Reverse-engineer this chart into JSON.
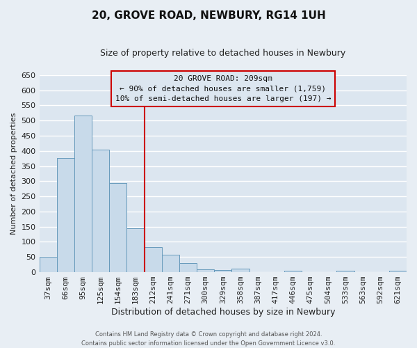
{
  "title": "20, GROVE ROAD, NEWBURY, RG14 1UH",
  "subtitle": "Size of property relative to detached houses in Newbury",
  "xlabel": "Distribution of detached houses by size in Newbury",
  "ylabel": "Number of detached properties",
  "categories": [
    "37sqm",
    "66sqm",
    "95sqm",
    "125sqm",
    "154sqm",
    "183sqm",
    "212sqm",
    "241sqm",
    "271sqm",
    "300sqm",
    "329sqm",
    "358sqm",
    "387sqm",
    "417sqm",
    "446sqm",
    "475sqm",
    "504sqm",
    "533sqm",
    "563sqm",
    "592sqm",
    "621sqm"
  ],
  "values": [
    51,
    376,
    517,
    403,
    293,
    144,
    82,
    57,
    30,
    10,
    7,
    11,
    0,
    0,
    5,
    0,
    0,
    5,
    0,
    0,
    5
  ],
  "bar_color": "#c8daea",
  "bar_edge_color": "#6699bb",
  "vline_x_index": 6,
  "vline_color": "#cc0000",
  "annotation_title": "20 GROVE ROAD: 209sqm",
  "annotation_line1": "← 90% of detached houses are smaller (1,759)",
  "annotation_line2": "10% of semi-detached houses are larger (197) →",
  "annotation_box_edge_color": "#cc0000",
  "ylim": [
    0,
    650
  ],
  "yticks": [
    0,
    50,
    100,
    150,
    200,
    250,
    300,
    350,
    400,
    450,
    500,
    550,
    600,
    650
  ],
  "footer_line1": "Contains HM Land Registry data © Crown copyright and database right 2024.",
  "footer_line2": "Contains public sector information licensed under the Open Government Licence v3.0.",
  "fig_bg_color": "#e8eef4",
  "axes_bg_color": "#dce6f0",
  "grid_color": "#ffffff",
  "title_fontsize": 11,
  "subtitle_fontsize": 9,
  "xlabel_fontsize": 9,
  "ylabel_fontsize": 8,
  "tick_fontsize": 8,
  "annotation_fontsize": 8,
  "footer_fontsize": 6
}
